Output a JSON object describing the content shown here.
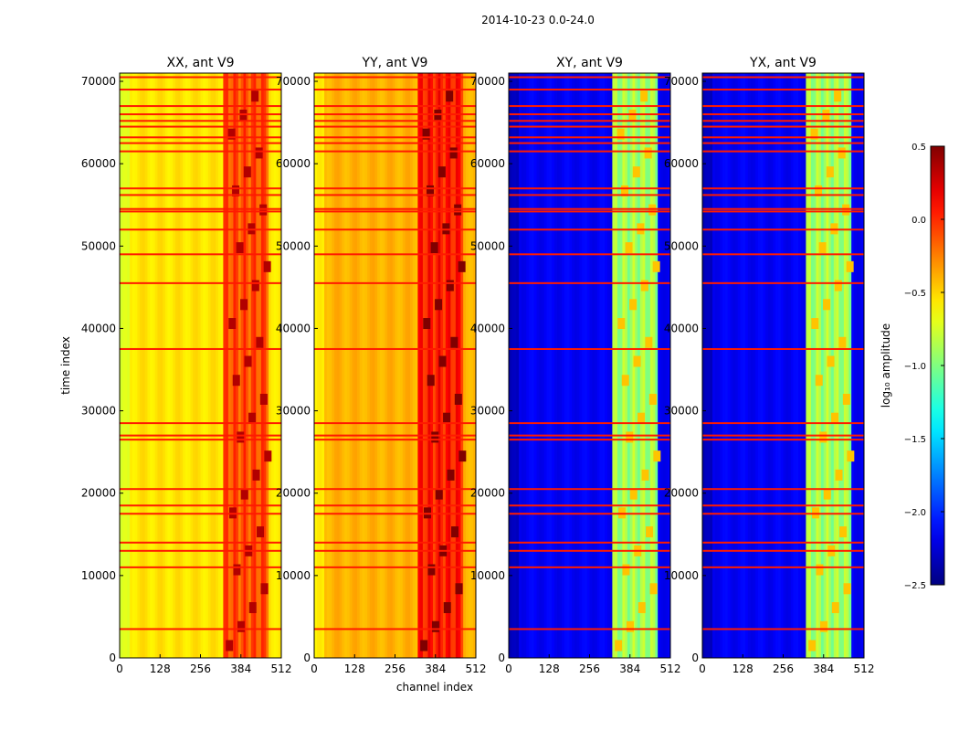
{
  "chart_data": {
    "type": "heatmap",
    "suptitle": "2014-10-23 0.0-24.0",
    "xlabel": "channel index",
    "ylabel": "time index",
    "xlim": [
      0,
      512
    ],
    "ylim": [
      0,
      71000
    ],
    "xticks": [
      0,
      128,
      256,
      384,
      512
    ],
    "yticks": [
      0,
      10000,
      20000,
      30000,
      40000,
      50000,
      60000,
      70000
    ],
    "panels": [
      {
        "title": "XX, ant V9",
        "pol": "XX",
        "base_level": -0.55,
        "band_level": -0.1
      },
      {
        "title": "YY, ant V9",
        "pol": "YY",
        "base_level": -0.4,
        "band_level": 0.05
      },
      {
        "title": "XY, ant V9",
        "pol": "XY",
        "base_level": -2.15,
        "band_level": -0.9
      },
      {
        "title": "YX, ant V9",
        "pol": "YX",
        "base_level": -2.15,
        "band_level": -0.9
      }
    ],
    "high_band_channels": [
      326,
      470
    ],
    "flagged_time_rows": [
      3500,
      11000,
      13000,
      14000,
      17500,
      18500,
      20500,
      26500,
      27000,
      28500,
      37500,
      45500,
      49000,
      52000,
      54200,
      54500,
      56200,
      57000,
      61500,
      62500,
      63200,
      64500,
      65200,
      66000,
      67000,
      69000,
      70500
    ],
    "colorbar": {
      "label": "log₁₀ amplitude",
      "min": -2.5,
      "max": 0.5,
      "ticks": [
        "0.5",
        "0.0",
        "−0.5",
        "−1.0",
        "−1.5",
        "−2.0",
        "−2.5"
      ],
      "colormap": "jet"
    }
  }
}
